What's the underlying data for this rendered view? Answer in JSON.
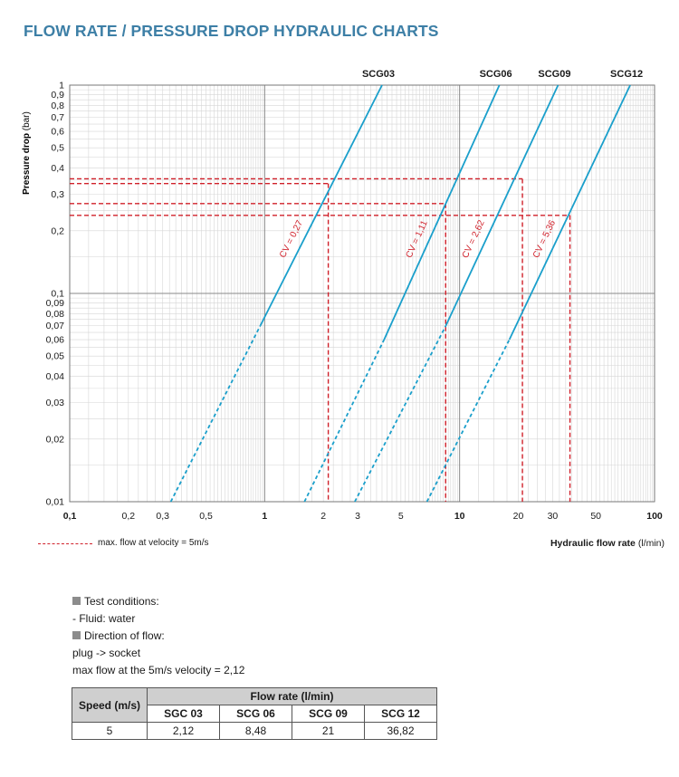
{
  "page": {
    "title": "FLOW RATE / PRESSURE DROP HYDRAULIC CHARTS"
  },
  "colors": {
    "curve": "#1a9fcb",
    "max_flow_marker": "#d0202a",
    "grid_major": "#8a8a8a",
    "grid_minor": "#d6d6d6",
    "title": "#3d7fa6"
  },
  "chart_data": {
    "type": "line",
    "title": "",
    "xlabel": "Hydraulic flow rate",
    "xlabel_unit": "(l/min)",
    "ylabel": "Pressure drop",
    "ylabel_unit": "(bar)",
    "xscale": "log",
    "yscale": "log",
    "xlim": [
      0.1,
      100
    ],
    "ylim": [
      0.01,
      1
    ],
    "grid": true,
    "x_ticks": [
      "0,1",
      "0,2",
      "0,3",
      "0,5",
      "1",
      "2",
      "3",
      "5",
      "10",
      "20",
      "30",
      "50",
      "100"
    ],
    "x_tick_values": [
      0.1,
      0.2,
      0.3,
      0.5,
      1,
      2,
      3,
      5,
      10,
      20,
      30,
      50,
      100
    ],
    "x_tick_bold": [
      true,
      false,
      false,
      false,
      true,
      false,
      false,
      false,
      true,
      false,
      false,
      false,
      true
    ],
    "y_ticks": [
      "1",
      "0,9",
      "0,8",
      "0,7",
      "0,6",
      "0,5",
      "0,4",
      "0,3",
      "0,2",
      "0,1",
      "0,09",
      "0,08",
      "0,07",
      "0,06",
      "0,05",
      "0,04",
      "0,03",
      "0,02",
      "0,01"
    ],
    "y_tick_values": [
      1,
      0.9,
      0.8,
      0.7,
      0.6,
      0.5,
      0.4,
      0.3,
      0.2,
      0.1,
      0.09,
      0.08,
      0.07,
      0.06,
      0.05,
      0.04,
      0.03,
      0.02,
      0.01
    ],
    "series": [
      {
        "name": "SCG03",
        "cv_label": "CV = 0,27",
        "x": [
          0.33,
          0.95,
          4.0
        ],
        "y": [
          0.01,
          0.07,
          1
        ],
        "dashed_below_x": 0.95,
        "max_flow": 2.12,
        "max_flow_dp": 0.337
      },
      {
        "name": "SCG06",
        "cv_label": "CV = 1,11",
        "x": [
          1.6,
          4.1,
          16.0
        ],
        "y": [
          0.01,
          0.06,
          1
        ],
        "dashed_below_x": 4.1,
        "max_flow": 8.48,
        "max_flow_dp": 0.27
      },
      {
        "name": "SCG09",
        "cv_label": "CV = 2,62",
        "x": [
          2.9,
          8.5,
          32.0
        ],
        "y": [
          0.01,
          0.07,
          1
        ],
        "dashed_below_x": 8.5,
        "max_flow": 21,
        "max_flow_dp": 0.355
      },
      {
        "name": "SCG12",
        "cv_label": "CV = 5,36",
        "x": [
          6.8,
          18.0,
          75.0
        ],
        "y": [
          0.01,
          0.06,
          1
        ],
        "dashed_below_x": 18.0,
        "max_flow": 36.82,
        "max_flow_dp": 0.237
      }
    ],
    "legend": {
      "label": "max. flow at velocity = 5m/s",
      "position": "bottom-left",
      "style": "dashed red line"
    }
  },
  "notes": {
    "test_conditions": "Test conditions:",
    "fluid": "- Fluid: water",
    "direction_heading": "Direction of flow:",
    "direction": "plug -> socket",
    "max_flow": "max flow at the 5m/s velocity = 2,12"
  },
  "table": {
    "speed_header": "Speed (m/s)",
    "flow_header": "Flow rate (l/min)",
    "columns": [
      "SGC 03",
      "SCG 06",
      "SCG 09",
      "SCG 12"
    ],
    "rows": [
      {
        "speed": "5",
        "values": [
          "2,12",
          "8,48",
          "21",
          "36,82"
        ]
      }
    ]
  }
}
